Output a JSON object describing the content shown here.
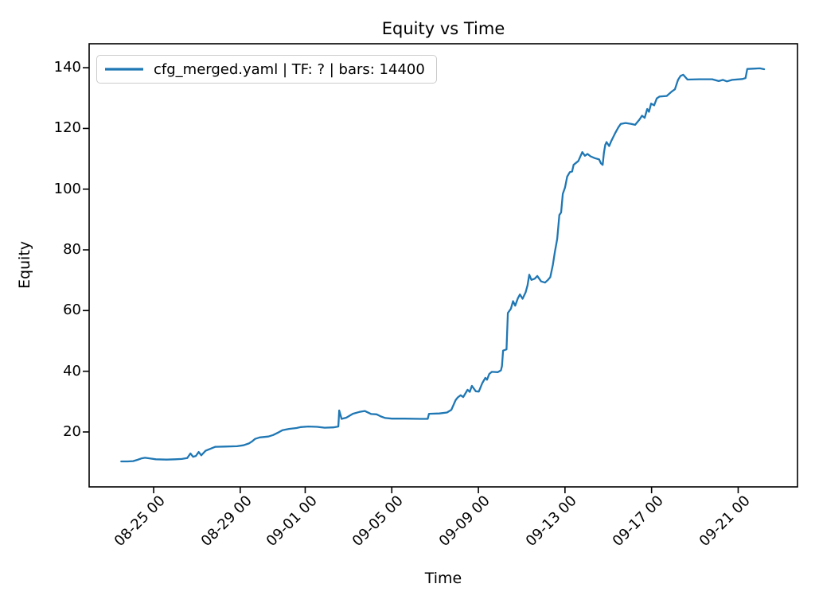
{
  "title": "Equity vs Time",
  "xlabel": "Time",
  "ylabel": "Equity",
  "legend": {
    "label": "cfg_merged.yaml | TF: ? | bars: 14400",
    "line_color": "#1f77b4",
    "position": "upper left"
  },
  "chart_data": {
    "type": "line",
    "title": "Equity vs Time",
    "xlabel": "Time",
    "ylabel": "Equity",
    "grid": false,
    "legend_position": "upper left",
    "x_unit": "days relative to 08-25 00:00 tick",
    "xlim": [
      -2.98,
      29.74
    ],
    "ylim": [
      1.9,
      147.9
    ],
    "y_ticks": [
      20,
      40,
      60,
      80,
      100,
      120,
      140
    ],
    "x_ticks": [
      {
        "t": 0,
        "label": "08-25 00"
      },
      {
        "t": 4,
        "label": "08-29 00"
      },
      {
        "t": 7,
        "label": "09-01 00"
      },
      {
        "t": 11,
        "label": "09-05 00"
      },
      {
        "t": 15,
        "label": "09-09 00"
      },
      {
        "t": 19,
        "label": "09-13 00"
      },
      {
        "t": 23,
        "label": "09-17 00"
      },
      {
        "t": 27,
        "label": "09-21 00"
      }
    ],
    "series": [
      {
        "name": "cfg_merged.yaml | TF: ? | bars: 14400",
        "color": "#1f77b4",
        "points": [
          [
            -1.5,
            10.3
          ],
          [
            -1.2,
            10.3
          ],
          [
            -0.95,
            10.4
          ],
          [
            -0.75,
            10.8
          ],
          [
            -0.55,
            11.3
          ],
          [
            -0.4,
            11.5
          ],
          [
            -0.2,
            11.3
          ],
          [
            0.1,
            11.0
          ],
          [
            0.6,
            10.9
          ],
          [
            1.0,
            11.0
          ],
          [
            1.3,
            11.1
          ],
          [
            1.55,
            11.4
          ],
          [
            1.7,
            12.9
          ],
          [
            1.82,
            11.8
          ],
          [
            1.95,
            12.1
          ],
          [
            2.08,
            13.4
          ],
          [
            2.2,
            12.3
          ],
          [
            2.4,
            13.8
          ],
          [
            2.6,
            14.4
          ],
          [
            2.85,
            15.1
          ],
          [
            3.3,
            15.2
          ],
          [
            3.85,
            15.3
          ],
          [
            4.15,
            15.6
          ],
          [
            4.4,
            16.2
          ],
          [
            4.55,
            16.9
          ],
          [
            4.68,
            17.7
          ],
          [
            4.9,
            18.2
          ],
          [
            5.3,
            18.5
          ],
          [
            5.52,
            19.0
          ],
          [
            5.78,
            19.9
          ],
          [
            5.95,
            20.6
          ],
          [
            6.25,
            21.0
          ],
          [
            6.6,
            21.3
          ],
          [
            6.8,
            21.6
          ],
          [
            7.15,
            21.8
          ],
          [
            7.55,
            21.7
          ],
          [
            7.9,
            21.4
          ],
          [
            8.3,
            21.5
          ],
          [
            8.53,
            21.8
          ],
          [
            8.57,
            27.1
          ],
          [
            8.68,
            24.3
          ],
          [
            8.9,
            24.7
          ],
          [
            9.2,
            26.0
          ],
          [
            9.5,
            26.6
          ],
          [
            9.75,
            26.9
          ],
          [
            10.05,
            25.9
          ],
          [
            10.3,
            25.8
          ],
          [
            10.5,
            25.1
          ],
          [
            10.7,
            24.6
          ],
          [
            11.0,
            24.4
          ],
          [
            11.6,
            24.4
          ],
          [
            12.3,
            24.3
          ],
          [
            12.66,
            24.3
          ],
          [
            12.72,
            26.0
          ],
          [
            13.2,
            26.1
          ],
          [
            13.55,
            26.4
          ],
          [
            13.75,
            27.3
          ],
          [
            13.95,
            30.5
          ],
          [
            14.05,
            31.4
          ],
          [
            14.18,
            32.1
          ],
          [
            14.3,
            31.5
          ],
          [
            14.5,
            33.9
          ],
          [
            14.6,
            33.2
          ],
          [
            14.7,
            35.2
          ],
          [
            14.88,
            33.4
          ],
          [
            15.02,
            33.3
          ],
          [
            15.18,
            36.1
          ],
          [
            15.32,
            37.8
          ],
          [
            15.4,
            37.2
          ],
          [
            15.5,
            39.1
          ],
          [
            15.62,
            39.8
          ],
          [
            15.9,
            39.7
          ],
          [
            16.04,
            40.3
          ],
          [
            16.09,
            41.7
          ],
          [
            16.14,
            46.8
          ],
          [
            16.3,
            47.2
          ],
          [
            16.36,
            59.2
          ],
          [
            16.5,
            60.6
          ],
          [
            16.6,
            63.1
          ],
          [
            16.7,
            61.6
          ],
          [
            16.82,
            64.0
          ],
          [
            16.92,
            65.3
          ],
          [
            17.04,
            63.9
          ],
          [
            17.18,
            66.0
          ],
          [
            17.27,
            68.3
          ],
          [
            17.35,
            71.8
          ],
          [
            17.45,
            70.1
          ],
          [
            17.6,
            70.5
          ],
          [
            17.72,
            71.4
          ],
          [
            17.9,
            69.6
          ],
          [
            18.08,
            69.2
          ],
          [
            18.2,
            70.0
          ],
          [
            18.32,
            71.0
          ],
          [
            18.44,
            75.0
          ],
          [
            18.53,
            79.2
          ],
          [
            18.64,
            83.6
          ],
          [
            18.74,
            91.5
          ],
          [
            18.82,
            92.3
          ],
          [
            18.9,
            98.4
          ],
          [
            19.0,
            100.5
          ],
          [
            19.1,
            104.1
          ],
          [
            19.22,
            105.6
          ],
          [
            19.33,
            105.8
          ],
          [
            19.4,
            108.0
          ],
          [
            19.62,
            109.3
          ],
          [
            19.8,
            112.2
          ],
          [
            19.92,
            111.0
          ],
          [
            20.04,
            111.6
          ],
          [
            20.18,
            110.8
          ],
          [
            20.38,
            110.2
          ],
          [
            20.58,
            109.8
          ],
          [
            20.66,
            108.5
          ],
          [
            20.74,
            108.0
          ],
          [
            20.8,
            112.0
          ],
          [
            20.86,
            114.6
          ],
          [
            20.92,
            115.5
          ],
          [
            21.04,
            114.2
          ],
          [
            21.14,
            115.9
          ],
          [
            21.32,
            118.5
          ],
          [
            21.46,
            120.3
          ],
          [
            21.58,
            121.5
          ],
          [
            21.8,
            121.8
          ],
          [
            22.06,
            121.5
          ],
          [
            22.24,
            121.2
          ],
          [
            22.44,
            122.9
          ],
          [
            22.56,
            124.2
          ],
          [
            22.68,
            123.5
          ],
          [
            22.8,
            126.4
          ],
          [
            22.88,
            125.5
          ],
          [
            22.98,
            128.2
          ],
          [
            23.12,
            127.6
          ],
          [
            23.24,
            129.9
          ],
          [
            23.36,
            130.5
          ],
          [
            23.7,
            130.7
          ],
          [
            23.92,
            132.1
          ],
          [
            24.08,
            132.9
          ],
          [
            24.22,
            136.0
          ],
          [
            24.34,
            137.3
          ],
          [
            24.46,
            137.7
          ],
          [
            24.66,
            136.1
          ],
          [
            25.2,
            136.2
          ],
          [
            25.8,
            136.2
          ],
          [
            26.1,
            135.6
          ],
          [
            26.3,
            136.0
          ],
          [
            26.48,
            135.5
          ],
          [
            26.72,
            136.0
          ],
          [
            27.2,
            136.3
          ],
          [
            27.34,
            136.6
          ],
          [
            27.42,
            139.6
          ],
          [
            27.7,
            139.7
          ],
          [
            28.0,
            139.8
          ],
          [
            28.2,
            139.5
          ]
        ]
      }
    ]
  }
}
